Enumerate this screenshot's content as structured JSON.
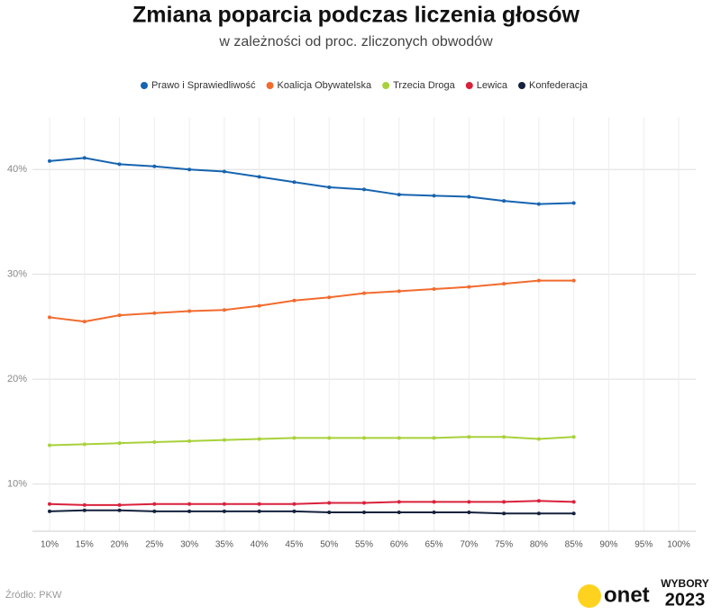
{
  "chart_data": {
    "type": "line",
    "title": "Zmiana poparcia podczas liczenia głosów",
    "subtitle": "w zależności od proc. zliczonych obwodów",
    "categories": [
      "10%",
      "15%",
      "20%",
      "25%",
      "30%",
      "35%",
      "40%",
      "45%",
      "50%",
      "55%",
      "60%",
      "65%",
      "70%",
      "75%",
      "80%",
      "85%",
      "90%",
      "95%",
      "100%"
    ],
    "series": [
      {
        "name": "Prawo i Sprawiedliwość",
        "color": "#1764b0",
        "values": [
          40.8,
          41.1,
          40.5,
          40.3,
          40.0,
          39.8,
          39.3,
          38.8,
          38.3,
          38.1,
          37.6,
          37.5,
          37.4,
          37.0,
          36.7,
          36.8,
          null,
          null,
          null
        ]
      },
      {
        "name": "Koalicja Obywatelska",
        "color": "#f26b2e",
        "values": [
          25.9,
          25.5,
          26.1,
          26.3,
          26.5,
          26.6,
          27.0,
          27.5,
          27.8,
          28.2,
          28.4,
          28.6,
          28.8,
          29.1,
          29.4,
          29.4,
          null,
          null,
          null
        ]
      },
      {
        "name": "Trzecia Droga",
        "color": "#a8d13a",
        "values": [
          13.7,
          13.8,
          13.9,
          14.0,
          14.1,
          14.2,
          14.3,
          14.4,
          14.4,
          14.4,
          14.4,
          14.4,
          14.5,
          14.5,
          14.3,
          14.5,
          null,
          null,
          null
        ]
      },
      {
        "name": "Lewica",
        "color": "#d9213b",
        "values": [
          8.1,
          8.0,
          8.0,
          8.1,
          8.1,
          8.1,
          8.1,
          8.1,
          8.2,
          8.2,
          8.3,
          8.3,
          8.3,
          8.3,
          8.4,
          8.3,
          null,
          null,
          null
        ]
      },
      {
        "name": "Konfederacja",
        "color": "#14213d",
        "values": [
          7.4,
          7.5,
          7.5,
          7.4,
          7.4,
          7.4,
          7.4,
          7.4,
          7.3,
          7.3,
          7.3,
          7.3,
          7.3,
          7.2,
          7.2,
          7.2,
          null,
          null,
          null
        ]
      }
    ],
    "ylim": [
      5.5,
      45
    ],
    "yticks": [
      {
        "value": 10,
        "label": "10%"
      },
      {
        "value": 20,
        "label": "20%"
      },
      {
        "value": 30,
        "label": "30%"
      },
      {
        "value": 40,
        "label": "40%"
      }
    ],
    "grid": true,
    "legend": "top",
    "source": "Źródło: PKW",
    "brand": "onet",
    "badge": [
      "WYBORY",
      "2023"
    ]
  }
}
